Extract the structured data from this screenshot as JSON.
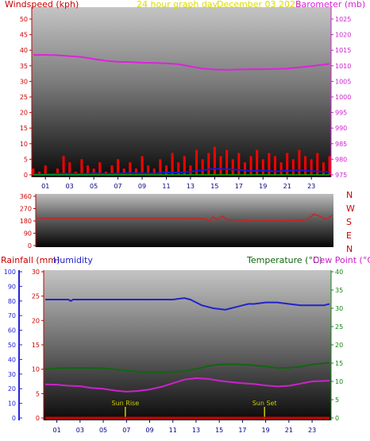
{
  "colors": {
    "windspeed": "#cc0000",
    "wind_gust": "#ff0000",
    "wind_avg": "#1a1acc",
    "wind_low": "#00aa00",
    "barometer": "#dd22dd",
    "title": "#dddd00",
    "direction": "#cc2222",
    "rainfall": "#cc0000",
    "humidity": "#2222cc",
    "temperature": "#116611",
    "dewpoint": "#cc22cc",
    "hum_axis": "#2222dd",
    "temp_axis": "#118811",
    "sun": "#cccc00",
    "xaxis": "#000088"
  },
  "header": {
    "windspeed": "Windspeed (kph)",
    "title": "24 hour graph day",
    "date": "December 03 2025",
    "barometer": "Barometer (mb)"
  },
  "compass": [
    "N",
    "W",
    "S",
    "E",
    "N"
  ],
  "bottom_header": {
    "rainfall": "Rainfall (mm)",
    "humidity": "Humidity",
    "temperature": "Temperature (°C)",
    "dewpoint": "Dew Point (°C)"
  },
  "sun": {
    "rise_label": "Sun Rise",
    "set_label": "Sun Set",
    "rise_hour": 6.9,
    "set_hour": 18.9
  },
  "chart_data": [
    {
      "type": "line",
      "title": "24 hour graph day",
      "subtitle": "December 03 2025",
      "x_ticks": [
        "01",
        "03",
        "05",
        "07",
        "09",
        "11",
        "13",
        "15",
        "17",
        "19",
        "21",
        "23"
      ],
      "xlim": [
        0,
        24.5
      ],
      "y_left": {
        "label": "Windspeed (kph)",
        "ylim": [
          0,
          50
        ],
        "ticks": [
          "0",
          "5",
          "10",
          "15",
          "20",
          "25",
          "30",
          "35",
          "40",
          "45",
          "50"
        ]
      },
      "y_right": {
        "label": "Barometer (mb)",
        "ylim": [
          975,
          1025
        ],
        "ticks": [
          "975",
          "980",
          "985",
          "990",
          "995",
          "1000",
          "1005",
          "1010",
          "1015",
          "1020",
          "1025"
        ]
      },
      "series": [
        {
          "name": "Barometer (mb)",
          "axis": "right",
          "x": [
            0,
            1,
            2,
            3,
            4,
            5,
            6,
            7,
            8,
            9,
            10,
            11,
            12,
            13,
            14,
            15,
            16,
            17,
            18,
            19,
            20,
            21,
            22,
            23,
            24.5
          ],
          "y": [
            1013.5,
            1013.5,
            1013.4,
            1013.1,
            1012.8,
            1012.2,
            1011.6,
            1011.3,
            1011.2,
            1011.0,
            1010.9,
            1010.8,
            1010.5,
            1009.8,
            1009.1,
            1008.8,
            1008.7,
            1008.8,
            1008.9,
            1008.9,
            1009.0,
            1009.1,
            1009.5,
            1009.9,
            1010.6
          ]
        },
        {
          "name": "Windspeed gust",
          "axis": "left",
          "x": [
            0,
            0.5,
            1,
            1.5,
            2,
            2.5,
            3,
            3.5,
            4,
            4.5,
            5,
            5.5,
            6,
            6.5,
            7,
            7.5,
            8,
            8.5,
            9,
            9.5,
            10,
            10.5,
            11,
            11.5,
            12,
            12.5,
            13,
            13.5,
            14,
            14.5,
            15,
            15.5,
            16,
            16.5,
            17,
            17.5,
            18,
            18.5,
            19,
            19.5,
            20,
            20.5,
            21,
            21.5,
            22,
            22.5,
            23,
            23.5,
            24,
            24.5
          ],
          "y": [
            2,
            1,
            3,
            0,
            2,
            6,
            4,
            1,
            5,
            3,
            2,
            4,
            1,
            3,
            5,
            2,
            4,
            2,
            6,
            3,
            2,
            5,
            3,
            7,
            4,
            6,
            3,
            8,
            5,
            7,
            9,
            6,
            8,
            5,
            7,
            4,
            6,
            8,
            5,
            7,
            6,
            4,
            7,
            5,
            8,
            6,
            5,
            7,
            4,
            6
          ]
        },
        {
          "name": "Windspeed average",
          "axis": "left",
          "x": [
            0,
            1,
            2,
            3,
            4,
            5,
            6,
            7,
            8,
            9,
            10,
            11,
            12,
            13,
            14,
            15,
            16,
            17,
            18,
            19,
            20,
            21,
            22,
            23,
            24.5
          ],
          "y": [
            0.2,
            0.1,
            0.3,
            0.4,
            0.2,
            0.5,
            0.3,
            0.4,
            0.6,
            0.5,
            0.4,
            0.8,
            0.7,
            1.0,
            1.5,
            2.0,
            1.8,
            1.6,
            1.2,
            1.4,
            1.1,
            1.3,
            1.5,
            1.2,
            0.9
          ]
        }
      ]
    },
    {
      "type": "line",
      "title": "",
      "x_ticks": [],
      "xlim": [
        0,
        24.5
      ],
      "y_left": {
        "label": "",
        "ylim": [
          0,
          360
        ],
        "ticks": [
          "0",
          "90",
          "180",
          "270",
          "360"
        ]
      },
      "series": [
        {
          "name": "Wind direction",
          "axis": "left",
          "x": [
            0,
            2,
            4,
            6,
            8,
            10,
            12,
            13,
            14,
            14.3,
            14.6,
            15,
            15.4,
            15.8,
            16,
            17,
            18,
            19,
            20,
            21,
            22,
            22.5,
            23,
            23.5,
            24,
            24.5
          ],
          "y": [
            200,
            200,
            200,
            200,
            200,
            200,
            200,
            198,
            195,
            175,
            210,
            190,
            215,
            185,
            190,
            185,
            180,
            182,
            182,
            183,
            185,
            190,
            230,
            215,
            190,
            220
          ]
        }
      ]
    },
    {
      "type": "line",
      "title": "",
      "x_ticks": [
        "01",
        "03",
        "05",
        "07",
        "09",
        "11",
        "13",
        "15",
        "17",
        "19",
        "21",
        "23"
      ],
      "xlim": [
        0,
        24.5
      ],
      "y_humidity": {
        "label": "Humidity",
        "ylim": [
          0,
          100
        ],
        "ticks": [
          "0",
          "10",
          "20",
          "30",
          "40",
          "50",
          "60",
          "70",
          "80",
          "90",
          "100"
        ]
      },
      "y_rain": {
        "label": "Rainfall (mm)",
        "ylim": [
          0,
          30
        ],
        "ticks": [
          "0",
          "5",
          "10",
          "15",
          "20",
          "25",
          "30"
        ]
      },
      "y_right": {
        "label": "Temperature (°C)",
        "ylim": [
          0,
          40
        ],
        "ticks": [
          "0",
          "5",
          "10",
          "15",
          "20",
          "25",
          "30",
          "35",
          "40"
        ]
      },
      "series": [
        {
          "name": "Humidity",
          "axis": "humidity",
          "x": [
            0,
            1,
            2,
            2.2,
            2.4,
            3,
            5,
            7,
            9,
            11,
            11.5,
            12,
            12.5,
            13,
            13.5,
            14,
            14.5,
            15,
            15.5,
            16,
            16.5,
            17,
            17.5,
            18,
            19,
            20,
            21,
            22,
            23,
            23.5,
            24,
            24.5
          ],
          "y": [
            81,
            81,
            81,
            80,
            81,
            81,
            81,
            81,
            81,
            81,
            81.5,
            82,
            81,
            79,
            77,
            76,
            75,
            74.5,
            74,
            75,
            76,
            77,
            78,
            78,
            79,
            79,
            78,
            77,
            77,
            77,
            77,
            78
          ]
        },
        {
          "name": "Temperature (°C)",
          "axis": "right",
          "x": [
            0,
            1,
            3,
            5,
            7,
            8,
            9,
            10,
            11,
            12,
            13,
            14,
            15,
            16,
            17,
            18,
            19,
            20,
            21,
            22,
            23,
            24.5
          ],
          "y": [
            13.3,
            13.6,
            13.7,
            13.6,
            13.0,
            12.6,
            12.5,
            12.5,
            12.6,
            12.8,
            13.4,
            14.2,
            14.6,
            14.7,
            14.6,
            14.4,
            14.1,
            13.7,
            13.7,
            14.0,
            14.6,
            15.1
          ]
        },
        {
          "name": "Dew Point (°C)",
          "axis": "right",
          "x": [
            0,
            1,
            2,
            3,
            4,
            5,
            6,
            7,
            8,
            9,
            10,
            11,
            12,
            13,
            14,
            15,
            16,
            17,
            18,
            19,
            20,
            21,
            22,
            23,
            24.5
          ],
          "y": [
            9.2,
            9.1,
            8.8,
            8.7,
            8.2,
            8.0,
            7.5,
            7.2,
            7.4,
            7.8,
            8.5,
            9.5,
            10.5,
            10.9,
            10.7,
            10.2,
            9.8,
            9.5,
            9.3,
            8.9,
            8.6,
            8.8,
            9.4,
            10.0,
            10.2
          ]
        },
        {
          "name": "Rainfall (mm)",
          "axis": "rain",
          "x": [
            0,
            24.5
          ],
          "y": [
            0,
            0
          ]
        }
      ]
    }
  ]
}
